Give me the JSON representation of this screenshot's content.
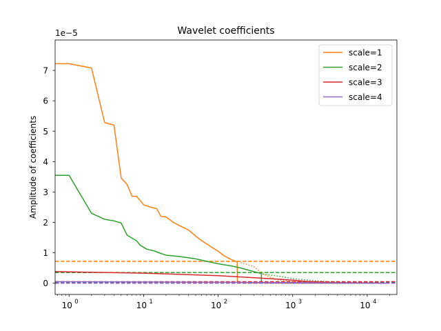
{
  "chart_data": {
    "type": "line",
    "title": "Wavelet coefficients",
    "xlabel": "",
    "ylabel": "Amplitude of coefficients",
    "y_offset_text": "1e−5",
    "x_scale": "log",
    "xlim": [
      0.65,
      25000
    ],
    "ylim": [
      -0.37,
      8.0
    ],
    "y_unit_multiplier": 1e-05,
    "x_ticks": [
      {
        "value": 1,
        "label": "10",
        "exp": "0"
      },
      {
        "value": 10,
        "label": "10",
        "exp": "1"
      },
      {
        "value": 100,
        "label": "10",
        "exp": "2"
      },
      {
        "value": 1000,
        "label": "10",
        "exp": "3"
      },
      {
        "value": 10000,
        "label": "10",
        "exp": "4"
      }
    ],
    "y_ticks": [
      0,
      1,
      2,
      3,
      4,
      5,
      6,
      7
    ],
    "grid": false,
    "legend_position": "top-right",
    "series": [
      {
        "name": "scale=1",
        "color": "#ff7f0e",
        "threshold": 0.72,
        "points": [
          [
            0.65,
            7.22
          ],
          [
            1,
            7.22
          ],
          [
            2,
            7.08
          ],
          [
            3,
            5.28
          ],
          [
            4,
            5.2
          ],
          [
            5,
            3.46
          ],
          [
            5.5,
            3.35
          ],
          [
            6,
            3.25
          ],
          [
            7,
            2.86
          ],
          [
            8,
            2.86
          ],
          [
            9,
            2.72
          ],
          [
            10,
            2.58
          ],
          [
            12,
            2.51
          ],
          [
            15,
            2.45
          ],
          [
            17,
            2.2
          ],
          [
            20,
            2.18
          ],
          [
            25,
            2.0
          ],
          [
            30,
            1.9
          ],
          [
            40,
            1.75
          ],
          [
            50,
            1.55
          ],
          [
            60,
            1.4
          ],
          [
            80,
            1.2
          ],
          [
            100,
            1.05
          ],
          [
            120,
            0.9
          ],
          [
            150,
            0.78
          ],
          [
            180,
            0.7
          ],
          [
            181,
            0.02
          ],
          [
            300,
            0.01
          ],
          [
            1000,
            0.0
          ],
          [
            20000,
            0.0
          ]
        ],
        "dashed_tail": [
          [
            200,
            0.68
          ],
          [
            300,
            0.55
          ],
          [
            400,
            0.3
          ],
          [
            600,
            0.12
          ],
          [
            1000,
            0.05
          ],
          [
            3000,
            0.0
          ]
        ]
      },
      {
        "name": "scale=2",
        "color": "#2ca02c",
        "threshold": 0.35,
        "points": [
          [
            0.65,
            3.55
          ],
          [
            1,
            3.55
          ],
          [
            2,
            2.3
          ],
          [
            3,
            2.1
          ],
          [
            4,
            2.05
          ],
          [
            5,
            1.98
          ],
          [
            6,
            1.58
          ],
          [
            7,
            1.48
          ],
          [
            8,
            1.4
          ],
          [
            9,
            1.25
          ],
          [
            11,
            1.12
          ],
          [
            14,
            1.06
          ],
          [
            17,
            0.98
          ],
          [
            20,
            0.92
          ],
          [
            30,
            0.88
          ],
          [
            50,
            0.8
          ],
          [
            70,
            0.72
          ],
          [
            100,
            0.64
          ],
          [
            150,
            0.57
          ],
          [
            200,
            0.5
          ],
          [
            300,
            0.38
          ],
          [
            380,
            0.32
          ],
          [
            381,
            0.02
          ],
          [
            1000,
            0.01
          ],
          [
            20000,
            0.0
          ]
        ],
        "dashed_tail": [
          [
            400,
            0.3
          ],
          [
            700,
            0.22
          ],
          [
            1000,
            0.15
          ],
          [
            2000,
            0.08
          ],
          [
            4000,
            0.03
          ]
        ]
      },
      {
        "name": "scale=3",
        "color": "#d62728",
        "threshold": 0.05,
        "points": [
          [
            0.65,
            0.38
          ],
          [
            10,
            0.33
          ],
          [
            100,
            0.25
          ],
          [
            500,
            0.15
          ],
          [
            1000,
            0.1
          ],
          [
            1500,
            0.06
          ],
          [
            3000,
            0.02
          ],
          [
            10000,
            0.01
          ],
          [
            20000,
            0.0
          ]
        ],
        "dashed_tail": []
      },
      {
        "name": "scale=4",
        "color": "#9467bd",
        "threshold": 0.0,
        "points": [
          [
            0.65,
            0.05
          ],
          [
            1000,
            0.02
          ],
          [
            3000,
            0.01
          ],
          [
            20000,
            0.0
          ]
        ],
        "dashed_tail": []
      }
    ],
    "background_series": [
      {
        "color": "#1f77b4",
        "value": 0.02
      }
    ]
  }
}
